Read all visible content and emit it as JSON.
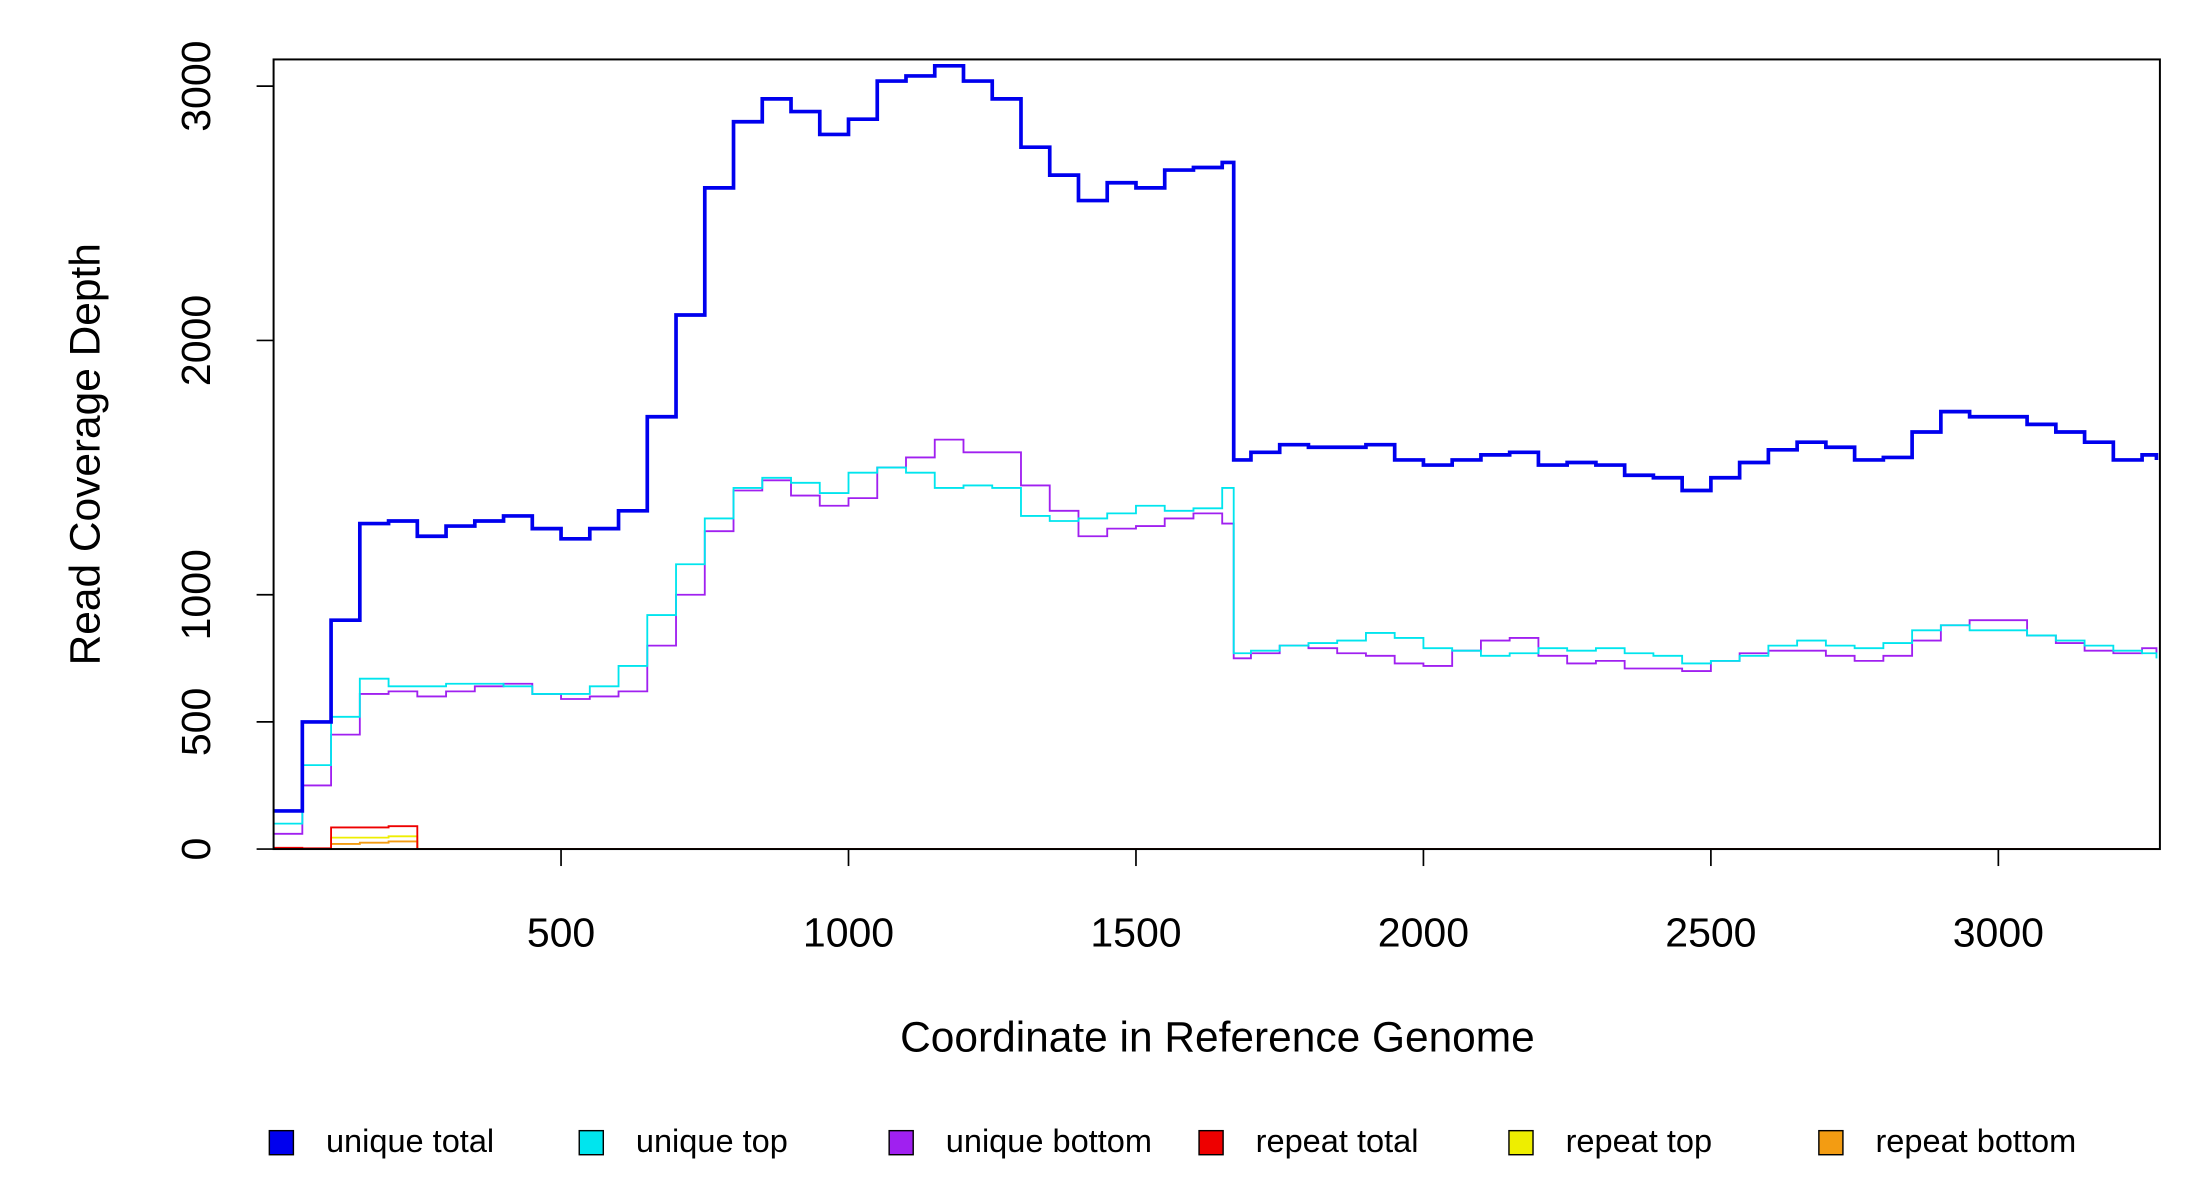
{
  "chart_data": {
    "type": "line",
    "drawstyle": "steps-post",
    "x_label": "Coordinate in Reference Genome",
    "y_label": "Read Coverage Depth",
    "legend": "bottom",
    "xlim": [
      0,
      3281
    ],
    "ylim": [
      0,
      3105
    ],
    "xticks": [
      500,
      1000,
      1500,
      2000,
      2500,
      3000
    ],
    "yticks": [
      0,
      500,
      1000,
      2000,
      3000
    ],
    "x": [
      0,
      50,
      100,
      150,
      200,
      250,
      300,
      350,
      400,
      450,
      500,
      550,
      600,
      650,
      700,
      750,
      800,
      850,
      900,
      950,
      1000,
      1050,
      1100,
      1150,
      1200,
      1250,
      1300,
      1350,
      1400,
      1450,
      1500,
      1550,
      1600,
      1650,
      1670,
      1700,
      1750,
      1800,
      1850,
      1900,
      1950,
      2000,
      2050,
      2100,
      2150,
      2200,
      2250,
      2300,
      2350,
      2400,
      2450,
      2500,
      2550,
      2600,
      2650,
      2700,
      2750,
      2800,
      2850,
      2900,
      2950,
      3000,
      3050,
      3100,
      3150,
      3200,
      3250,
      3275
    ],
    "series": [
      {
        "name": "unique total",
        "color": "#0000ee",
        "values": [
          150,
          500,
          900,
          1280,
          1290,
          1230,
          1270,
          1290,
          1310,
          1260,
          1220,
          1260,
          1330,
          1700,
          2100,
          2600,
          2860,
          2950,
          2900,
          2810,
          2870,
          3020,
          3040,
          3080,
          3020,
          2950,
          2760,
          2650,
          2550,
          2620,
          2600,
          2670,
          2680,
          2700,
          1530,
          1560,
          1590,
          1580,
          1580,
          1590,
          1530,
          1510,
          1530,
          1550,
          1560,
          1510,
          1520,
          1510,
          1470,
          1460,
          1410,
          1460,
          1520,
          1570,
          1600,
          1580,
          1530,
          1540,
          1640,
          1720,
          1700,
          1700,
          1670,
          1640,
          1600,
          1530,
          1550,
          1530
        ]
      },
      {
        "name": "unique top",
        "color": "#00e5ee",
        "values": [
          100,
          330,
          520,
          670,
          640,
          640,
          650,
          650,
          640,
          610,
          610,
          640,
          720,
          920,
          1120,
          1300,
          1420,
          1460,
          1440,
          1400,
          1480,
          1500,
          1480,
          1420,
          1430,
          1420,
          1310,
          1290,
          1300,
          1320,
          1350,
          1330,
          1340,
          1420,
          770,
          780,
          800,
          810,
          820,
          850,
          830,
          790,
          780,
          760,
          770,
          790,
          780,
          790,
          770,
          760,
          730,
          740,
          760,
          800,
          820,
          800,
          790,
          810,
          860,
          880,
          860,
          860,
          840,
          820,
          800,
          780,
          770,
          750
        ]
      },
      {
        "name": "unique bottom",
        "color": "#a020f0",
        "values": [
          60,
          250,
          450,
          610,
          620,
          600,
          620,
          640,
          650,
          610,
          590,
          600,
          620,
          800,
          1000,
          1250,
          1410,
          1450,
          1390,
          1350,
          1380,
          1500,
          1540,
          1610,
          1560,
          1560,
          1430,
          1330,
          1230,
          1260,
          1270,
          1300,
          1320,
          1280,
          750,
          770,
          800,
          790,
          770,
          760,
          730,
          720,
          780,
          820,
          830,
          760,
          730,
          740,
          710,
          710,
          700,
          740,
          770,
          780,
          780,
          760,
          740,
          760,
          820,
          880,
          900,
          900,
          840,
          810,
          780,
          770,
          790,
          770
        ]
      },
      {
        "name": "repeat total",
        "color": "#ee0000",
        "values": [
          5,
          3,
          85,
          85,
          90,
          0,
          0,
          0,
          0,
          0,
          0,
          0,
          0,
          0,
          0,
          0,
          0,
          0,
          0,
          0,
          0,
          0,
          0,
          0,
          0,
          0,
          0,
          0,
          0,
          0,
          0,
          0,
          0,
          0,
          0,
          0,
          0,
          0,
          0,
          0,
          0,
          0,
          0,
          0,
          0,
          0,
          0,
          0,
          0,
          0,
          0,
          0,
          0,
          0,
          0,
          0,
          0,
          0,
          0,
          0,
          0,
          0,
          0,
          0,
          0,
          0,
          0,
          0
        ]
      },
      {
        "name": "repeat top",
        "color": "#eeee00",
        "values": [
          0,
          0,
          45,
          45,
          50,
          0,
          0,
          0,
          0,
          0,
          0,
          0,
          0,
          0,
          0,
          0,
          0,
          0,
          0,
          0,
          0,
          0,
          0,
          0,
          0,
          0,
          0,
          0,
          0,
          0,
          0,
          0,
          0,
          0,
          0,
          0,
          0,
          0,
          0,
          0,
          0,
          0,
          0,
          0,
          0,
          0,
          0,
          0,
          0,
          0,
          0,
          0,
          0,
          0,
          0,
          0,
          0,
          0,
          0,
          0,
          0,
          0,
          0,
          0,
          0,
          0,
          0,
          0
        ]
      },
      {
        "name": "repeat bottom",
        "color": "#f39c12",
        "values": [
          3,
          2,
          20,
          25,
          30,
          0,
          0,
          0,
          0,
          0,
          0,
          0,
          0,
          0,
          0,
          0,
          0,
          0,
          0,
          0,
          0,
          0,
          0,
          0,
          0,
          0,
          0,
          0,
          0,
          0,
          0,
          0,
          0,
          0,
          0,
          0,
          0,
          0,
          0,
          0,
          0,
          0,
          0,
          0,
          0,
          0,
          0,
          0,
          0,
          0,
          0,
          0,
          0,
          0,
          0,
          0,
          0,
          0,
          0,
          0,
          0,
          0,
          0,
          0,
          0,
          0,
          0,
          0
        ]
      }
    ]
  }
}
